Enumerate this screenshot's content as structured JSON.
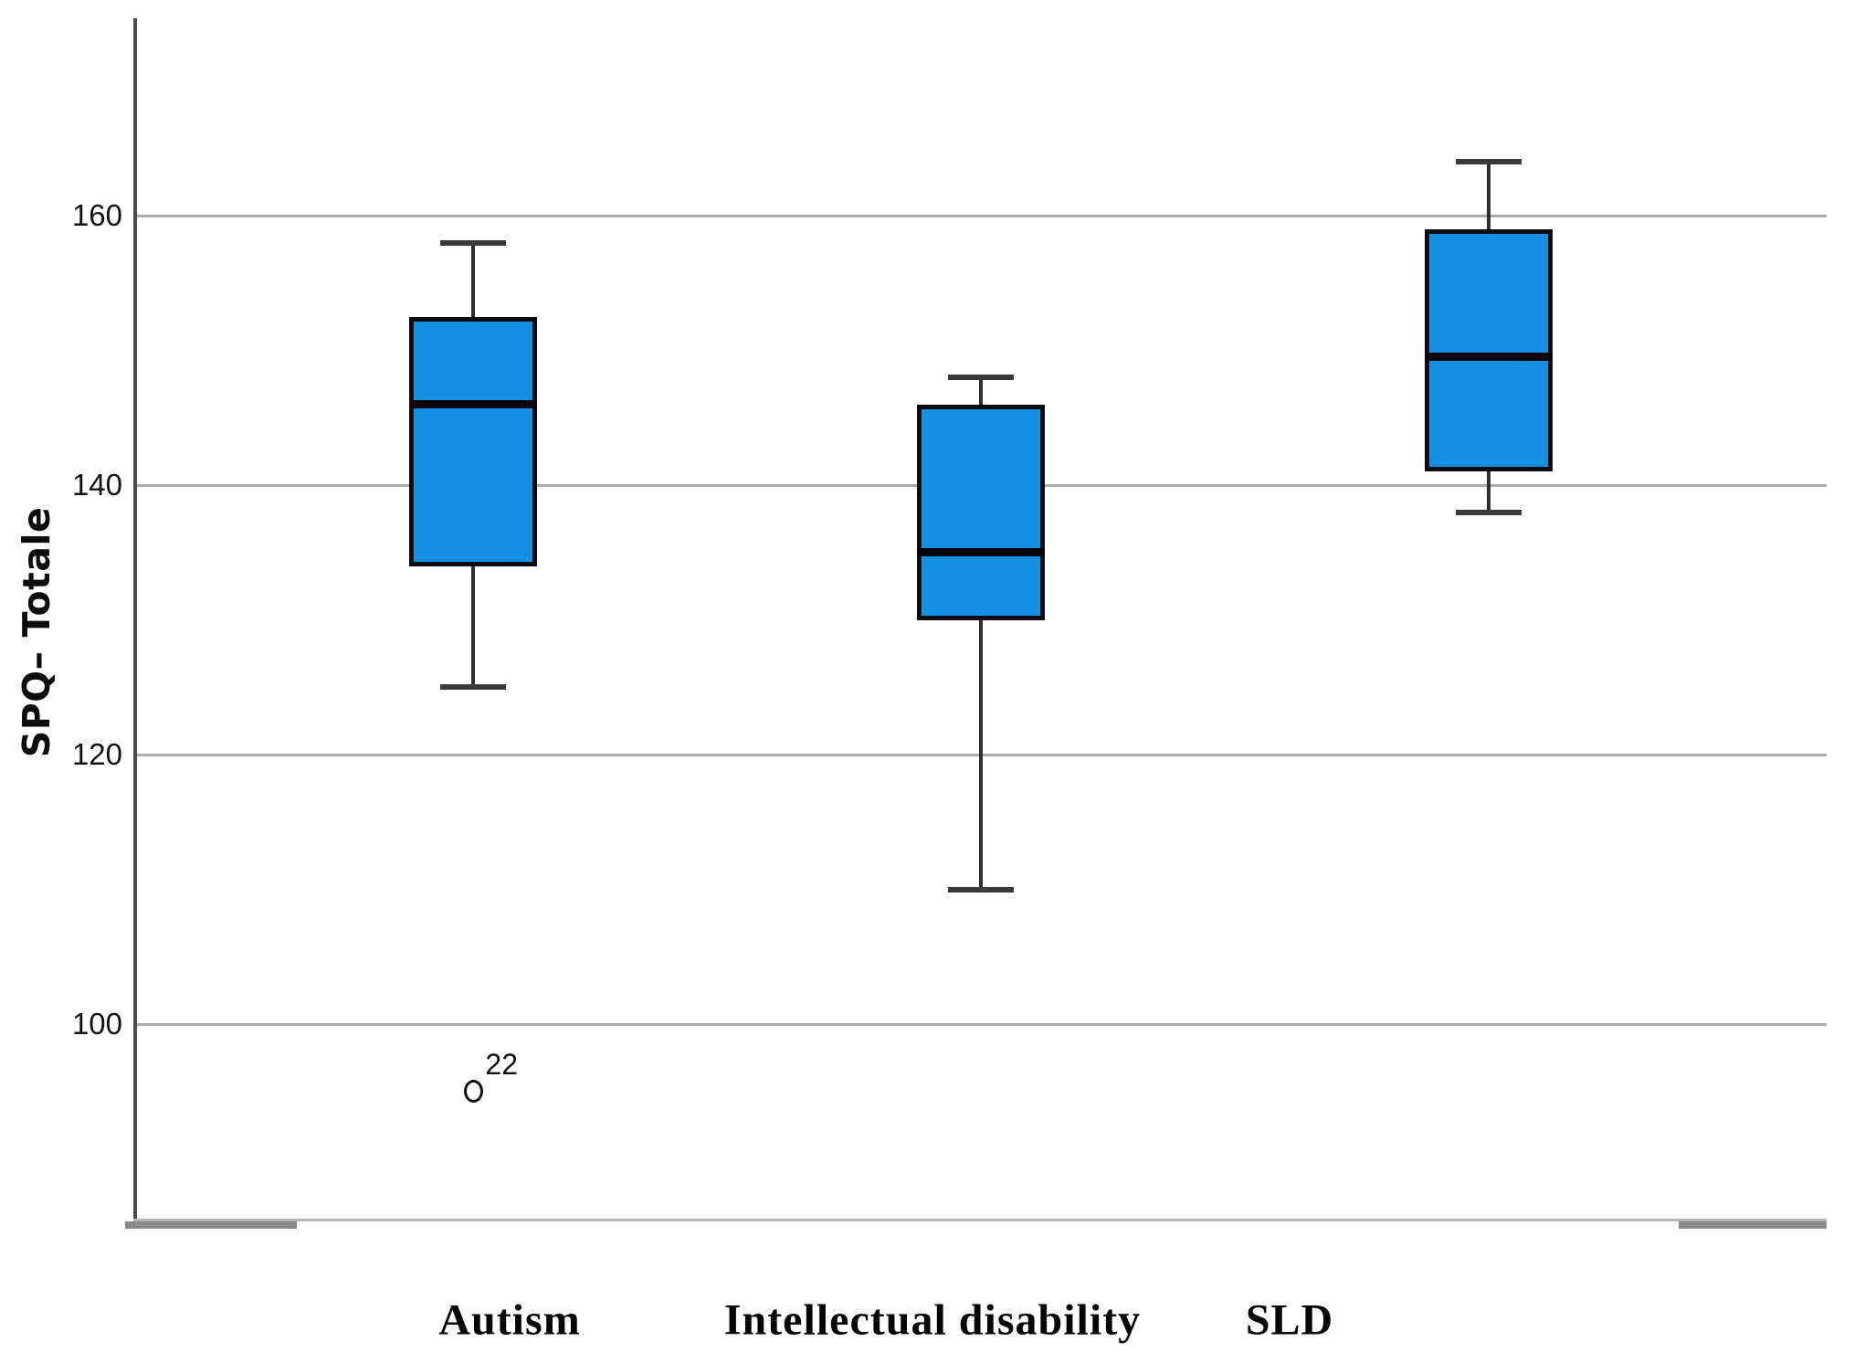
{
  "chart_data": {
    "type": "box",
    "title": "",
    "xlabel": "",
    "ylabel": "SPQ– Totale",
    "categories": [
      "Autism",
      "Intellectual disability",
      "SLD"
    ],
    "yticks": [
      160,
      140,
      120,
      100
    ],
    "ylim": [
      85,
      175
    ],
    "grid": "horizontal-only",
    "legend": "none",
    "series": [
      {
        "name": "Autism",
        "whisker_low": 125,
        "q1": 134,
        "median": 146,
        "q3": 152.5,
        "whisker_high": 158,
        "outliers": [
          {
            "value": 95,
            "label": "22"
          }
        ]
      },
      {
        "name": "Intellectual disability",
        "whisker_low": 110,
        "q1": 130,
        "median": 135,
        "q3": 146,
        "whisker_high": 148,
        "outliers": []
      },
      {
        "name": "SLD",
        "whisker_low": 138,
        "q1": 141,
        "median": 149.5,
        "q3": 159,
        "whisker_high": 164,
        "outliers": []
      }
    ],
    "colors": {
      "box_fill": "#1490E0",
      "box_border": "#0b0b10",
      "median": "#050508",
      "whisker": "#2e2e2e",
      "gridline": "#ababab",
      "axis": "#4a4a4a"
    }
  }
}
